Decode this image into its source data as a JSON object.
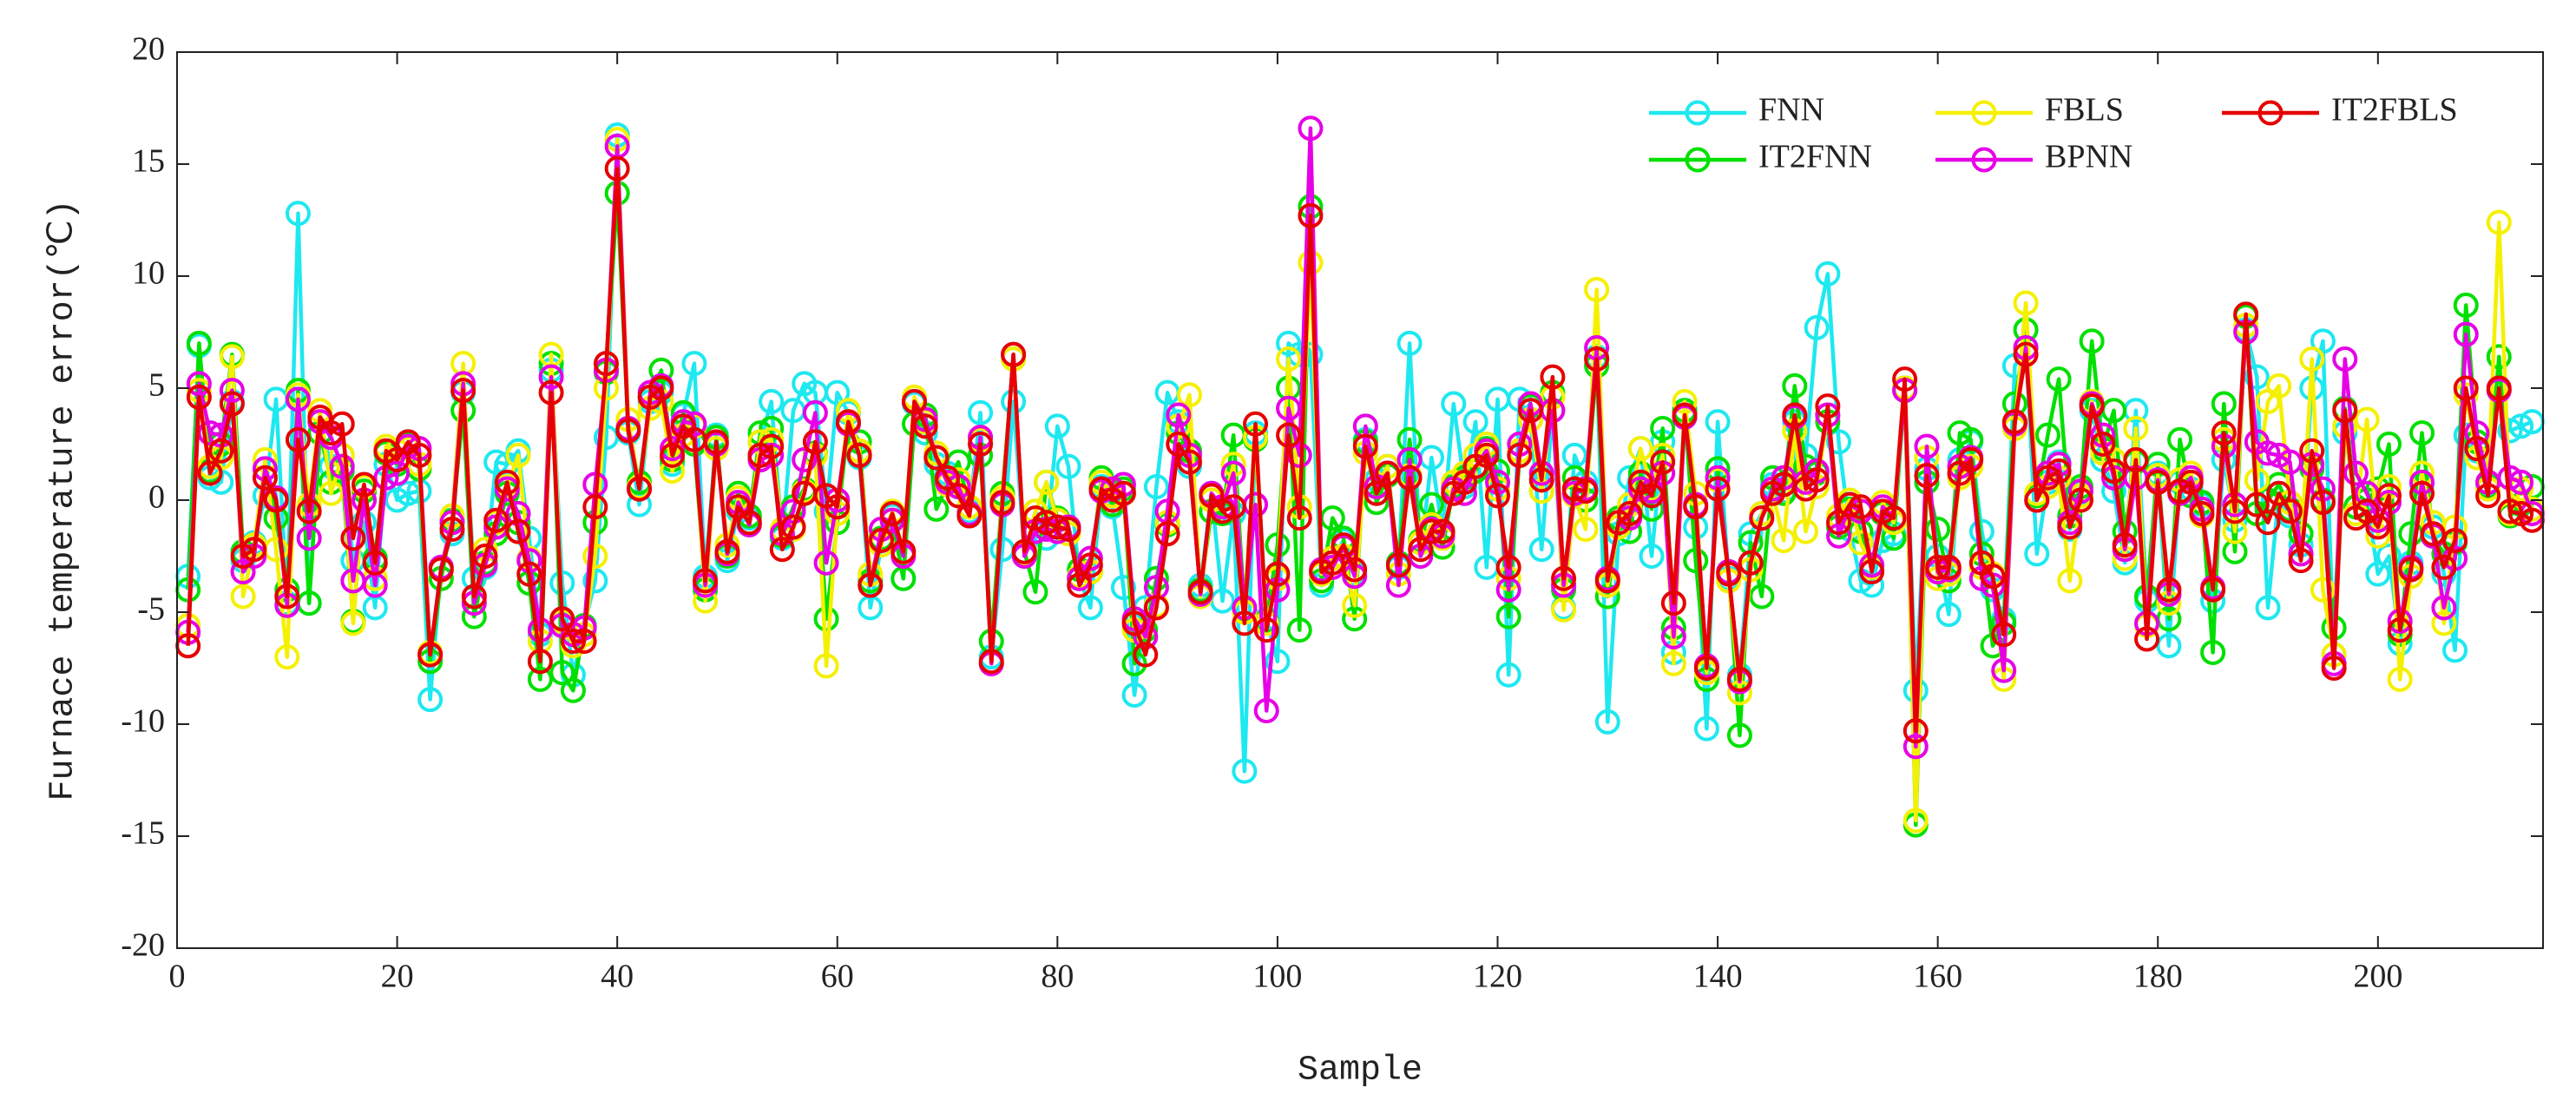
{
  "chart_data": {
    "type": "line",
    "xlabel": "Sample",
    "ylabel": "Furnace temperature error(℃)",
    "xlim": [
      0,
      215
    ],
    "ylim": [
      -20,
      20
    ],
    "xticks": [
      0,
      20,
      40,
      60,
      80,
      100,
      120,
      140,
      160,
      180,
      200
    ],
    "yticks": [
      -20,
      -15,
      -10,
      -5,
      0,
      5,
      10,
      15,
      20
    ],
    "grid": false,
    "legend": "upper right",
    "x": [
      1,
      2,
      3,
      4,
      5,
      6,
      7,
      8,
      9,
      10,
      11,
      12,
      13,
      14,
      15,
      16,
      17,
      18,
      19,
      20,
      21,
      22,
      23,
      24,
      25,
      26,
      27,
      28,
      29,
      30,
      31,
      32,
      33,
      34,
      35,
      36,
      37,
      38,
      39,
      40,
      41,
      42,
      43,
      44,
      45,
      46,
      47,
      48,
      49,
      50,
      51,
      52,
      53,
      54,
      55,
      56,
      57,
      58,
      59,
      60,
      61,
      62,
      63,
      64,
      65,
      66,
      67,
      68,
      69,
      70,
      71,
      72,
      73,
      74,
      75,
      76,
      77,
      78,
      79,
      80,
      81,
      82,
      83,
      84,
      85,
      86,
      87,
      88,
      89,
      90,
      91,
      92,
      93,
      94,
      95,
      96,
      97,
      98,
      99,
      100,
      101,
      102,
      103,
      104,
      105,
      106,
      107,
      108,
      109,
      110,
      111,
      112,
      113,
      114,
      115,
      116,
      117,
      118,
      119,
      120,
      121,
      122,
      123,
      124,
      125,
      126,
      127,
      128,
      129,
      130,
      131,
      132,
      133,
      134,
      135,
      136,
      137,
      138,
      139,
      140,
      141,
      142,
      143,
      144,
      145,
      146,
      147,
      148,
      149,
      150,
      151,
      152,
      153,
      154,
      155,
      156,
      157,
      158,
      159,
      160,
      161,
      162,
      163,
      164,
      165,
      166,
      167,
      168,
      169,
      170,
      171,
      172,
      173,
      174,
      175,
      176,
      177,
      178,
      179,
      180,
      181,
      182,
      183,
      184,
      185,
      186,
      187,
      188,
      189,
      190,
      191,
      192,
      193,
      194,
      195,
      196,
      197,
      198,
      199,
      200,
      201,
      202,
      203,
      204,
      205,
      206,
      207,
      208,
      209,
      210,
      211,
      212,
      213,
      214
    ],
    "series": [
      {
        "name": "FNN",
        "color": "#1ee8f0",
        "values": [
          -3.4,
          6.9,
          1.0,
          0.8,
          4.4,
          -2.7,
          -1.9,
          0.2,
          4.5,
          -4.6,
          12.8,
          -4.6,
          3.5,
          1.5,
          2.0,
          -2.7,
          -1.0,
          -4.8,
          1.6,
          0.0,
          0.3,
          0.4,
          -8.9,
          -3.0,
          -1.5,
          4.8,
          -3.5,
          -3.0,
          1.7,
          1.6,
          2.2,
          -1.7,
          -6.0,
          5.8,
          -3.7,
          -7.8,
          -5.6,
          -3.6,
          2.8,
          16.3,
          3.0,
          -0.2,
          4.4,
          4.8,
          1.6,
          3.8,
          6.1,
          -3.4,
          2.9,
          -2.7,
          -0.5,
          -0.8,
          2.6,
          4.4,
          -1.7,
          4.0,
          5.2,
          4.8,
          -0.5,
          4.8,
          3.9,
          1.9,
          -4.8,
          -2.0,
          -0.7,
          -3.5,
          4.3,
          3.0,
          1.6,
          1.2,
          0.6,
          -0.5,
          3.9,
          -7.0,
          -2.2,
          4.4,
          -2.4,
          -0.5,
          -1.7,
          3.3,
          1.5,
          -3.5,
          -4.8,
          0.6,
          -0.3,
          -3.9,
          -8.7,
          -4.8,
          0.6,
          4.8,
          3.5,
          1.5,
          -3.8,
          0.3,
          -4.5,
          -0.6,
          -12.1,
          3.0,
          -5.3,
          -7.2,
          7.0,
          6.5,
          6.5,
          -3.8,
          -2.6,
          -1.8,
          -3.3,
          2.7,
          0.9,
          1.5,
          -3.0,
          7.0,
          -2.5,
          1.9,
          -1.4,
          4.3,
          0.6,
          3.5,
          -3.0,
          4.5,
          -7.8,
          4.5,
          3.6,
          -2.2,
          4.0,
          -4.8,
          2.0,
          0.8,
          6.4,
          -9.9,
          -1.5,
          1.0,
          2.3,
          -2.5,
          2.6,
          -6.8,
          4.0,
          -1.2,
          -10.2,
          3.5,
          -3.5,
          -7.8,
          -1.5,
          -0.6,
          0.7,
          0.4,
          3.5,
          2.0,
          7.7,
          10.1,
          2.6,
          -1.3,
          -3.6,
          -3.8,
          -1.8,
          -1.5,
          4.9,
          -8.5,
          1.4,
          -2.5,
          -5.1,
          1.8,
          2.6,
          -1.4,
          -4.0,
          -5.3,
          6.0,
          6.8,
          -2.4,
          0.8,
          1.7,
          -1.3,
          0.3,
          4.0,
          1.8,
          0.4,
          -2.8,
          4.0,
          -4.5,
          1.2,
          -6.5,
          0.8,
          0.5,
          -0.2,
          -4.5,
          1.8,
          -0.9,
          7.6,
          5.5,
          -4.8,
          0.3,
          -0.7,
          -2.0,
          5.0,
          7.1,
          -6.9,
          3.0,
          -0.3,
          0.0,
          -3.3,
          -2.5,
          -6.4,
          -2.8,
          0.7,
          -1.2,
          -3.3,
          -6.7,
          2.9,
          2.2,
          0.7,
          4.9,
          3.1,
          3.3,
          3.5
        ]
      },
      {
        "name": "IT2FNN",
        "color": "#00e000",
        "values": [
          -4.0,
          7.0,
          1.3,
          2.5,
          6.5,
          -2.3,
          -2.0,
          1.4,
          -0.8,
          -4.0,
          4.9,
          -4.6,
          3.0,
          0.8,
          1.3,
          -5.4,
          0.4,
          -2.6,
          2.1,
          1.6,
          2.5,
          1.4,
          -7.2,
          -3.5,
          -0.9,
          4.0,
          -5.2,
          -2.8,
          -1.5,
          0.3,
          -1.0,
          -3.7,
          -8.0,
          6.1,
          -7.7,
          -8.5,
          -5.6,
          -1.0,
          5.7,
          13.7,
          3.2,
          0.8,
          4.6,
          5.8,
          1.8,
          3.9,
          2.5,
          -4.0,
          2.8,
          -2.5,
          0.3,
          -0.7,
          3.0,
          3.2,
          -1.6,
          -0.3,
          0.5,
          2.1,
          -5.3,
          -1.0,
          3.4,
          2.6,
          -3.6,
          -1.7,
          -0.9,
          -3.5,
          3.4,
          3.8,
          -0.4,
          0.7,
          1.7,
          -0.3,
          2.0,
          -6.3,
          0.3,
          6.3,
          -2.3,
          -4.1,
          0.8,
          -0.8,
          -1.2,
          -3.1,
          -3.2,
          1.0,
          -0.2,
          0.5,
          -7.3,
          -5.8,
          -3.5,
          -1.1,
          3.0,
          2.2,
          -4.0,
          -0.5,
          -0.6,
          2.9,
          -4.9,
          2.7,
          -5.4,
          -2.0,
          5.0,
          -5.8,
          13.1,
          -3.6,
          -0.8,
          -1.7,
          -5.3,
          2.6,
          -0.1,
          1.1,
          -2.8,
          2.7,
          -1.8,
          -0.2,
          -2.1,
          0.6,
          1.0,
          1.3,
          2.3,
          1.3,
          -5.2,
          2.0,
          4.2,
          0.4,
          4.8,
          -4.0,
          1.0,
          0.0,
          6.0,
          -4.3,
          -0.8,
          -1.4,
          1.2,
          -0.4,
          3.2,
          -5.7,
          4.0,
          -2.7,
          -8.0,
          1.4,
          -3.2,
          -10.5,
          -1.9,
          -4.3,
          1.0,
          0.3,
          5.1,
          1.5,
          1.2,
          3.5,
          -1.2,
          -0.4,
          -1.4,
          -3.0,
          -0.6,
          -1.7,
          5.0,
          -14.5,
          0.8,
          -1.3,
          -3.6,
          3.0,
          2.7,
          -2.4,
          -6.5,
          -5.5,
          4.3,
          7.6,
          0.2,
          2.9,
          5.4,
          -0.7,
          0.6,
          7.1,
          2.3,
          4.0,
          -1.4,
          1.7,
          -4.3,
          1.6,
          -5.3,
          2.7,
          0.2,
          -0.1,
          -6.8,
          4.3,
          -2.3,
          8.2,
          -0.6,
          0.0,
          0.7,
          -0.4,
          -1.5,
          1.4,
          0.0,
          -5.7,
          4.1,
          -0.3,
          0.0,
          0.5,
          2.5,
          -6.0,
          -1.5,
          3.0,
          -1.6,
          -2.4,
          -1.9,
          8.7,
          2.6,
          0.6,
          6.4,
          -0.7,
          -0.2,
          0.6
        ]
      },
      {
        "name": "FBLS",
        "color": "#f5f000",
        "values": [
          -5.6,
          4.9,
          1.5,
          1.9,
          6.4,
          -4.3,
          -2.0,
          1.8,
          -2.2,
          -7.0,
          4.7,
          -0.2,
          4.0,
          0.3,
          2.0,
          -5.5,
          0.6,
          -3.5,
          2.4,
          2.2,
          2.3,
          1.6,
          -6.8,
          -3.1,
          -0.7,
          6.1,
          -4.6,
          -2.2,
          -1.0,
          0.6,
          2.0,
          -2.6,
          -6.3,
          6.5,
          -5.4,
          -6.5,
          -6.0,
          -2.5,
          5.0,
          16.1,
          3.6,
          0.6,
          4.1,
          4.4,
          1.3,
          2.9,
          3.3,
          -4.5,
          2.3,
          -2.0,
          0.1,
          -1.1,
          2.6,
          2.7,
          -1.3,
          -1.3,
          0.4,
          2.0,
          -7.4,
          -0.6,
          4.0,
          2.2,
          -3.3,
          -2.0,
          -0.5,
          -2.3,
          4.6,
          3.5,
          2.1,
          0.7,
          0.9,
          -0.3,
          2.7,
          -7.3,
          0.1,
          6.3,
          -2.4,
          -0.5,
          0.8,
          -0.9,
          -1.5,
          -3.4,
          -3.2,
          0.8,
          0.2,
          0.3,
          -5.8,
          -6.1,
          -4.7,
          -1.0,
          3.3,
          4.7,
          -4.3,
          0.0,
          -0.3,
          1.6,
          -5.0,
          2.8,
          -5.5,
          -3.5,
          6.3,
          -0.3,
          10.6,
          -3.3,
          -2.6,
          -2.5,
          -4.7,
          2.1,
          0.6,
          1.5,
          -3.3,
          1.1,
          -1.9,
          -1.1,
          -1.7,
          0.8,
          1.2,
          2.0,
          2.5,
          0.5,
          -3.5,
          2.2,
          3.6,
          0.4,
          4.6,
          -4.9,
          0.2,
          -1.3,
          9.4,
          -3.8,
          -1.2,
          -0.2,
          2.3,
          0.5,
          2.0,
          -7.3,
          4.4,
          0.3,
          -7.7,
          0.9,
          -3.6,
          -8.6,
          -3.1,
          -0.6,
          0.3,
          -1.8,
          3.1,
          -1.4,
          0.6,
          3.8,
          -0.7,
          0.0,
          -1.9,
          -3.0,
          -0.1,
          -1.0,
          5.0,
          -14.3,
          1.9,
          -3.5,
          -3.3,
          1.0,
          1.5,
          -3.0,
          -3.3,
          -8.0,
          3.2,
          8.8,
          0.3,
          0.6,
          1.0,
          -3.6,
          0.2,
          4.4,
          2.1,
          1.8,
          -2.6,
          3.2,
          -5.6,
          1.1,
          -4.6,
          0.9,
          1.2,
          -0.7,
          -4.0,
          2.7,
          -1.4,
          7.8,
          0.9,
          4.4,
          5.1,
          -0.1,
          -2.4,
          6.3,
          -4.0,
          -6.9,
          3.3,
          -0.6,
          3.6,
          -1.6,
          0.6,
          -8.0,
          -3.4,
          1.2,
          -1.0,
          -5.5,
          -1.2,
          4.7,
          1.9,
          0.5,
          12.4,
          -0.6,
          0.5,
          -0.4
        ]
      },
      {
        "name": "BPNN",
        "color": "#e600e6",
        "values": [
          -5.9,
          5.2,
          3.0,
          2.9,
          4.9,
          -3.2,
          -2.5,
          1.4,
          0.1,
          -4.7,
          4.5,
          -1.7,
          3.5,
          2.8,
          1.5,
          -3.6,
          0.0,
          -3.8,
          1.0,
          1.2,
          2.4,
          2.3,
          -6.9,
          -3.0,
          -1.0,
          5.2,
          -4.6,
          -2.9,
          -1.2,
          0.5,
          -0.6,
          -2.7,
          -5.8,
          5.5,
          -5.6,
          -6.0,
          -5.7,
          0.7,
          5.8,
          15.8,
          3.2,
          0.5,
          4.8,
          5.1,
          2.3,
          3.5,
          3.4,
          -3.8,
          2.5,
          -2.4,
          -0.1,
          -1.1,
          1.8,
          2.0,
          -1.5,
          -0.5,
          1.8,
          3.9,
          -2.8,
          0.0,
          3.4,
          2.0,
          -3.8,
          -1.3,
          -0.9,
          -2.5,
          4.4,
          3.6,
          1.9,
          0.8,
          0.6,
          -0.6,
          2.8,
          -7.3,
          -0.2,
          6.5,
          -2.5,
          -1.4,
          -1.3,
          -1.4,
          -1.2,
          -3.5,
          -2.6,
          0.4,
          0.5,
          0.7,
          -5.3,
          -6.1,
          -3.9,
          -0.5,
          3.8,
          2.0,
          -4.2,
          0.3,
          -0.3,
          1.2,
          -4.8,
          -0.2,
          -9.4,
          -4.0,
          4.1,
          2.0,
          16.6,
          -3.1,
          -3.0,
          -2.1,
          -3.4,
          3.3,
          0.6,
          1.2,
          -3.8,
          1.8,
          -2.5,
          -1.3,
          -1.6,
          0.5,
          0.3,
          1.5,
          2.2,
          0.8,
          -4.0,
          2.5,
          4.3,
          1.2,
          4.0,
          -3.8,
          0.3,
          0.5,
          6.8,
          -3.5,
          -1.0,
          -0.8,
          0.5,
          0.4,
          1.2,
          -6.1,
          3.7,
          -0.2,
          -7.4,
          1.0,
          -3.2,
          -8.1,
          -2.8,
          -0.8,
          0.5,
          1.0,
          3.7,
          0.8,
          1.3,
          3.8,
          -1.6,
          -0.2,
          -0.5,
          -2.9,
          -0.3,
          -0.8,
          4.9,
          -11.0,
          2.4,
          -3.2,
          -3.1,
          1.5,
          1.9,
          -3.5,
          -3.8,
          -7.6,
          3.4,
          6.8,
          0.0,
          1.2,
          1.6,
          -1.0,
          0.4,
          4.3,
          2.9,
          1.0,
          -2.2,
          1.0,
          -5.5,
          0.9,
          -4.2,
          0.3,
          1.0,
          -0.4,
          -3.9,
          2.4,
          -0.2,
          7.5,
          2.6,
          2.1,
          2.0,
          1.7,
          -2.4,
          1.6,
          0.5,
          -7.3,
          6.3,
          1.2,
          0.3,
          -0.9,
          -0.1,
          -5.4,
          -3.0,
          0.8,
          -1.6,
          -4.8,
          -2.6,
          7.4,
          3.0,
          0.8,
          4.9,
          1.0,
          0.8,
          -0.6
        ]
      },
      {
        "name": "IT2FBLS",
        "color": "#e60000",
        "values": [
          -6.5,
          4.6,
          1.2,
          2.2,
          4.3,
          -2.5,
          -2.2,
          1.0,
          0.0,
          -4.3,
          2.7,
          -0.5,
          3.7,
          3.0,
          3.4,
          -1.7,
          0.7,
          -2.8,
          2.2,
          1.8,
          2.6,
          2.0,
          -6.9,
          -3.1,
          -1.3,
          4.9,
          -4.3,
          -2.5,
          -0.9,
          0.8,
          -1.4,
          -3.3,
          -7.2,
          4.8,
          -5.3,
          -6.3,
          -6.3,
          -0.3,
          6.1,
          14.8,
          3.1,
          0.5,
          4.6,
          5.0,
          2.0,
          3.3,
          2.7,
          -3.6,
          2.6,
          -2.3,
          -0.3,
          -1.0,
          2.0,
          2.4,
          -2.2,
          -1.2,
          0.3,
          2.6,
          0.2,
          -0.3,
          3.5,
          2.0,
          -3.8,
          -1.8,
          -0.6,
          -2.3,
          4.4,
          3.3,
          1.9,
          1.0,
          0.2,
          -0.7,
          2.5,
          -7.2,
          -0.1,
          6.5,
          -2.3,
          -0.8,
          -1.0,
          -1.2,
          -1.3,
          -3.8,
          -2.9,
          0.5,
          0.0,
          0.3,
          -5.5,
          -6.9,
          -4.8,
          -1.5,
          2.5,
          1.7,
          -4.1,
          0.2,
          -0.5,
          -0.3,
          -5.5,
          3.4,
          -5.8,
          -3.3,
          2.9,
          -0.8,
          12.7,
          -3.2,
          -2.8,
          -2.0,
          -3.1,
          2.4,
          0.3,
          1.2,
          -2.9,
          1.0,
          -2.2,
          -1.4,
          -1.4,
          0.3,
          0.8,
          1.5,
          2.0,
          0.2,
          -3.0,
          2.0,
          4.0,
          0.9,
          5.5,
          -3.5,
          0.5,
          0.4,
          6.3,
          -3.6,
          -1.0,
          -0.6,
          0.8,
          0.2,
          1.7,
          -4.6,
          3.8,
          -0.3,
          -7.5,
          0.5,
          -3.3,
          -8.0,
          -2.8,
          -0.8,
          0.3,
          0.7,
          3.8,
          0.5,
          0.9,
          4.2,
          -1.0,
          -0.2,
          -0.3,
          -3.2,
          -0.5,
          -0.8,
          5.4,
          -10.3,
          1.1,
          -3.0,
          -3.0,
          1.2,
          1.8,
          -2.8,
          -3.4,
          -6.0,
          3.5,
          6.5,
          0.0,
          1.0,
          1.3,
          -1.2,
          0.0,
          4.2,
          2.5,
          1.3,
          -2.0,
          1.8,
          -6.2,
          0.8,
          -4.0,
          0.4,
          0.8,
          -0.6,
          -4.0,
          3.0,
          -0.5,
          8.3,
          -0.2,
          -1.0,
          0.3,
          -0.5,
          -2.7,
          2.2,
          -0.1,
          -7.5,
          4.0,
          -0.8,
          -0.5,
          -1.2,
          0.2,
          -5.8,
          -3.1,
          0.3,
          -1.5,
          -3.0,
          -1.8,
          5.0,
          2.3,
          0.2,
          5.0,
          -0.5,
          -0.6,
          -0.9
        ]
      }
    ]
  }
}
